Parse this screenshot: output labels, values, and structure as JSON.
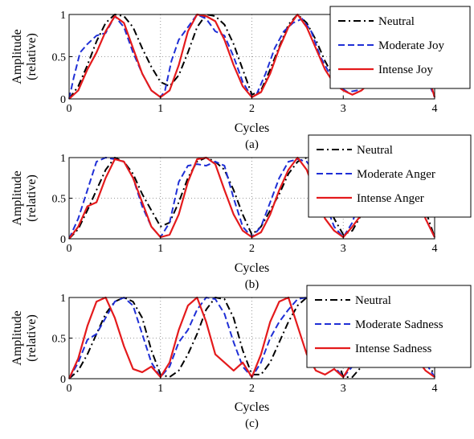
{
  "colors": {
    "neutral": "#000000",
    "moderate": "#1f2fd6",
    "intense": "#e41a1c"
  },
  "chart_data": [
    {
      "type": "line",
      "panel_label": "(a)",
      "xlabel": "Cycles",
      "ylabel": [
        "Amplitude",
        "(relative)"
      ],
      "xlim": [
        0,
        4
      ],
      "ylim": [
        0,
        1
      ],
      "xticks": [
        0,
        1,
        2,
        3,
        4
      ],
      "yticks": [
        0,
        0.5,
        1
      ],
      "yticklabels": [
        "0",
        "0.5",
        "1"
      ],
      "legend_position": "top-right",
      "series": [
        {
          "name": "Neutral",
          "style": "dashdot",
          "color": "#000000",
          "x": [
            0,
            0.1,
            0.2,
            0.3,
            0.4,
            0.5,
            0.6,
            0.7,
            0.8,
            0.9,
            1.0,
            1.1,
            1.2,
            1.3,
            1.4,
            1.5,
            1.6,
            1.7,
            1.8,
            1.9,
            2.0,
            2.1,
            2.2,
            2.3,
            2.4,
            2.5,
            2.6,
            2.7,
            2.8,
            2.9,
            3.0,
            3.1,
            3.2,
            3.3,
            3.4,
            3.5
          ],
          "y": [
            0,
            0.15,
            0.4,
            0.68,
            0.9,
            1.0,
            0.98,
            0.85,
            0.6,
            0.38,
            0.2,
            0.15,
            0.28,
            0.55,
            0.85,
            1.0,
            0.98,
            0.88,
            0.65,
            0.35,
            0.05,
            0.1,
            0.35,
            0.62,
            0.88,
            1.0,
            0.9,
            0.7,
            0.45,
            0.25,
            0.15,
            0.2,
            0.3,
            0.4,
            0.45,
            0.5
          ]
        },
        {
          "name": "Moderate Joy",
          "style": "dashed",
          "color": "#1f2fd6",
          "x": [
            0,
            0.05,
            0.12,
            0.2,
            0.3,
            0.4,
            0.5,
            0.6,
            0.7,
            0.8,
            0.9,
            1.0,
            1.05,
            1.12,
            1.2,
            1.3,
            1.4,
            1.5,
            1.6,
            1.7,
            1.8,
            1.9,
            2.0,
            2.05,
            2.15,
            2.25,
            2.35,
            2.45,
            2.55,
            2.65,
            2.75,
            2.85,
            2.95,
            3.05,
            3.15,
            3.25,
            3.35,
            3.45,
            3.5
          ],
          "y": [
            0,
            0.25,
            0.55,
            0.65,
            0.75,
            0.78,
            0.98,
            0.85,
            0.55,
            0.3,
            0.1,
            0.02,
            0.1,
            0.45,
            0.7,
            0.85,
            1.0,
            0.95,
            0.8,
            0.75,
            0.5,
            0.2,
            0.02,
            0.05,
            0.3,
            0.6,
            0.8,
            0.9,
            0.95,
            0.8,
            0.5,
            0.3,
            0.15,
            0.08,
            0.1,
            0.2,
            0.35,
            0.45,
            0.5
          ]
        },
        {
          "name": "Intense Joy",
          "style": "solid",
          "color": "#e41a1c",
          "x": [
            0,
            0.1,
            0.2,
            0.3,
            0.4,
            0.5,
            0.6,
            0.7,
            0.8,
            0.9,
            1.0,
            1.1,
            1.2,
            1.3,
            1.4,
            1.5,
            1.6,
            1.7,
            1.8,
            1.9,
            2.0,
            2.1,
            2.2,
            2.3,
            2.4,
            2.5,
            2.6,
            2.7,
            2.8,
            2.9,
            3.0,
            3.1,
            3.2,
            3.3,
            3.4,
            3.5
          ],
          "y": [
            0,
            0.1,
            0.35,
            0.55,
            0.8,
            0.98,
            0.9,
            0.6,
            0.3,
            0.1,
            0.02,
            0.1,
            0.4,
            0.8,
            1.0,
            0.98,
            0.92,
            0.7,
            0.4,
            0.15,
            0.02,
            0.08,
            0.3,
            0.6,
            0.85,
            1.0,
            0.85,
            0.6,
            0.35,
            0.18,
            0.1,
            0.05,
            0.1,
            0.2,
            0.35,
            0.45
          ]
        }
      ],
      "series_extra": [
        {
          "x": [
            3.65,
            3.75,
            3.85,
            3.95,
            4.0
          ],
          "neutral": [
            0.55,
            0.7,
            0.6,
            0.2,
            0.02
          ],
          "moderate": [
            0.55,
            0.65,
            0.5,
            0.15,
            0.02
          ],
          "intense": [
            0.5,
            0.6,
            0.55,
            0.2,
            0.02
          ]
        }
      ]
    },
    {
      "type": "line",
      "panel_label": "(b)",
      "xlabel": "Cycles",
      "ylabel": [
        "Amplitude",
        "(relative)"
      ],
      "xlim": [
        0,
        4
      ],
      "ylim": [
        0,
        1
      ],
      "xticks": [
        0,
        1,
        2,
        3,
        4
      ],
      "yticks": [
        0,
        0.5,
        1
      ],
      "yticklabels": [
        "0",
        "0.5",
        "1"
      ],
      "legend_position": "top-right",
      "series": [
        {
          "name": "Neutral",
          "style": "dashdot",
          "color": "#000000",
          "x": [
            0,
            0.1,
            0.2,
            0.3,
            0.4,
            0.5,
            0.6,
            0.7,
            0.8,
            0.9,
            1.0,
            1.1,
            1.2,
            1.3,
            1.4,
            1.5,
            1.6,
            1.7,
            1.8,
            1.9,
            2.0,
            2.1,
            2.2,
            2.3,
            2.4,
            2.5,
            2.6,
            2.7,
            2.8,
            2.9,
            3.0,
            3.1,
            3.2,
            3.3,
            3.4,
            3.5,
            3.6,
            3.7,
            3.8,
            3.9,
            4.0
          ],
          "y": [
            0,
            0.12,
            0.35,
            0.6,
            0.85,
            1.0,
            0.95,
            0.8,
            0.55,
            0.35,
            0.15,
            0.2,
            0.45,
            0.75,
            0.95,
            1.0,
            0.95,
            0.85,
            0.6,
            0.3,
            0.05,
            0.15,
            0.35,
            0.55,
            0.8,
            0.95,
            1.0,
            0.85,
            0.55,
            0.25,
            0.05,
            0.1,
            0.3,
            0.55,
            0.8,
            0.95,
            1.0,
            0.9,
            0.7,
            0.35,
            0.02
          ]
        },
        {
          "name": "Moderate Anger",
          "style": "dashed",
          "color": "#1f2fd6",
          "x": [
            0,
            0.1,
            0.2,
            0.3,
            0.4,
            0.5,
            0.6,
            0.7,
            0.8,
            0.9,
            1.0,
            1.1,
            1.2,
            1.3,
            1.4,
            1.5,
            1.6,
            1.7,
            1.8,
            1.9,
            2.0,
            2.1,
            2.2,
            2.3,
            2.4,
            2.5,
            2.6,
            2.7,
            2.8,
            2.9,
            3.0,
            3.1,
            3.2,
            3.3,
            3.4,
            3.5,
            3.6,
            3.7,
            3.8,
            3.9,
            4.0
          ],
          "y": [
            0,
            0.25,
            0.6,
            0.95,
            1.0,
            0.98,
            0.95,
            0.75,
            0.4,
            0.15,
            0.02,
            0.2,
            0.7,
            0.9,
            0.92,
            0.9,
            0.95,
            0.9,
            0.5,
            0.15,
            0.02,
            0.15,
            0.45,
            0.75,
            0.95,
            0.98,
            0.95,
            0.8,
            0.45,
            0.15,
            0.02,
            0.2,
            0.55,
            0.8,
            0.9,
            0.92,
            0.95,
            0.95,
            0.7,
            0.25,
            0.02
          ]
        },
        {
          "name": "Intense Anger",
          "style": "solid",
          "color": "#e41a1c",
          "x": [
            0,
            0.1,
            0.2,
            0.3,
            0.4,
            0.5,
            0.6,
            0.7,
            0.8,
            0.9,
            1.0,
            1.1,
            1.2,
            1.3,
            1.4,
            1.5,
            1.6,
            1.7,
            1.8,
            1.9,
            2.0,
            2.1,
            2.2,
            2.3,
            2.4,
            2.5,
            2.6,
            2.7,
            2.8,
            2.9,
            3.0,
            3.1,
            3.2,
            3.3,
            3.4,
            3.5,
            3.6,
            3.7,
            3.8,
            3.9,
            4.0
          ],
          "y": [
            0,
            0.15,
            0.4,
            0.45,
            0.75,
            0.98,
            0.95,
            0.75,
            0.45,
            0.15,
            0.02,
            0.05,
            0.3,
            0.7,
            0.98,
            1.0,
            0.92,
            0.6,
            0.3,
            0.1,
            0.02,
            0.08,
            0.3,
            0.6,
            0.85,
            1.0,
            0.85,
            0.55,
            0.25,
            0.1,
            0.02,
            0.15,
            0.3,
            0.3,
            0.45,
            0.75,
            0.95,
            0.9,
            0.6,
            0.25,
            0.02
          ]
        }
      ]
    },
    {
      "type": "line",
      "panel_label": "(c)",
      "xlabel": "Cycles",
      "ylabel": [
        "Amplitude",
        "(relative)"
      ],
      "xlim": [
        0,
        4
      ],
      "ylim": [
        0,
        1
      ],
      "xticks": [
        0,
        1,
        2,
        3,
        4
      ],
      "yticks": [
        0,
        0.5,
        1
      ],
      "yticklabels": [
        "0",
        "0.5",
        "1"
      ],
      "legend_position": "top-right",
      "series": [
        {
          "name": "Neutral",
          "style": "dashdot",
          "color": "#000000",
          "x": [
            0,
            0.1,
            0.2,
            0.3,
            0.4,
            0.5,
            0.6,
            0.7,
            0.8,
            0.9,
            1.0,
            1.1,
            1.2,
            1.3,
            1.4,
            1.5,
            1.6,
            1.7,
            1.8,
            1.9,
            2.0,
            2.1,
            2.2,
            2.3,
            2.4,
            2.5,
            2.6,
            2.7,
            2.8,
            2.9,
            3.0,
            3.1,
            3.2,
            3.3,
            3.4,
            3.5,
            3.6,
            3.7,
            3.8,
            3.9,
            4.0
          ],
          "y": [
            0,
            0.1,
            0.3,
            0.55,
            0.8,
            0.95,
            1.0,
            0.95,
            0.75,
            0.35,
            0.05,
            0.02,
            0.1,
            0.3,
            0.55,
            0.85,
            1.0,
            0.98,
            0.75,
            0.35,
            0.05,
            0.05,
            0.2,
            0.45,
            0.7,
            0.9,
            1.0,
            0.95,
            0.75,
            0.35,
            0.02,
            0.02,
            0.15,
            0.4,
            0.7,
            0.95,
            1.0,
            0.95,
            0.7,
            0.3,
            0.02
          ]
        },
        {
          "name": "Moderate Sadness",
          "style": "dashed",
          "color": "#1f2fd6",
          "x": [
            0,
            0.1,
            0.2,
            0.3,
            0.4,
            0.5,
            0.6,
            0.7,
            0.8,
            0.9,
            1.0,
            1.1,
            1.2,
            1.3,
            1.4,
            1.5,
            1.6,
            1.7,
            1.8,
            1.9,
            2.0,
            2.1,
            2.2,
            2.3,
            2.4,
            2.5,
            2.6,
            2.7,
            2.8,
            2.9,
            3.0,
            3.1,
            3.2,
            3.3,
            3.4,
            3.5,
            3.6,
            3.7,
            3.8,
            3.9,
            4.0
          ],
          "y": [
            0,
            0.2,
            0.48,
            0.55,
            0.75,
            0.95,
            1.0,
            0.9,
            0.55,
            0.2,
            0.02,
            0.15,
            0.45,
            0.6,
            0.85,
            1.0,
            0.98,
            0.8,
            0.45,
            0.15,
            0.02,
            0.2,
            0.5,
            0.7,
            0.85,
            0.98,
            1.0,
            0.85,
            0.5,
            0.15,
            0.02,
            0.15,
            0.4,
            0.6,
            0.85,
            0.98,
            1.0,
            0.9,
            0.55,
            0.2,
            0.02
          ]
        },
        {
          "name": "Intense Sadness",
          "style": "solid",
          "color": "#e41a1c",
          "x": [
            0,
            0.1,
            0.2,
            0.3,
            0.4,
            0.5,
            0.6,
            0.7,
            0.8,
            0.9,
            1.0,
            1.1,
            1.2,
            1.3,
            1.4,
            1.5,
            1.6,
            1.7,
            1.8,
            1.9,
            2.0,
            2.1,
            2.2,
            2.3,
            2.4,
            2.5,
            2.6,
            2.7,
            2.8,
            2.9,
            3.0,
            3.1,
            3.2,
            3.3,
            3.4,
            3.5,
            3.6,
            3.7,
            3.8,
            3.9,
            4.0
          ],
          "y": [
            0,
            0.25,
            0.65,
            0.95,
            1.0,
            0.75,
            0.4,
            0.12,
            0.08,
            0.15,
            0.02,
            0.2,
            0.6,
            0.9,
            1.0,
            0.7,
            0.3,
            0.2,
            0.1,
            0.2,
            0.02,
            0.3,
            0.7,
            0.95,
            1.0,
            0.65,
            0.3,
            0.1,
            0.05,
            0.12,
            0.02,
            0.2,
            0.55,
            0.85,
            0.95,
            0.7,
            0.35,
            0.15,
            0.25,
            0.1,
            0.02
          ]
        }
      ]
    }
  ]
}
